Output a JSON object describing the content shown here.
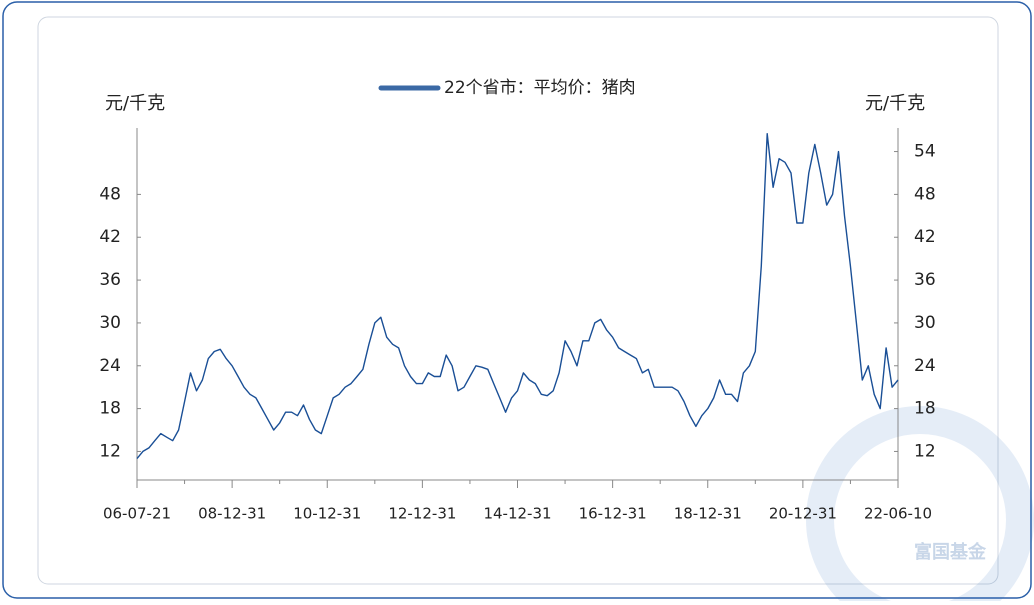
{
  "chart_data": {
    "type": "line",
    "ylabel": "元/千克",
    "y2label": "元/千克",
    "watermark": "富国基金",
    "categories": [
      "06-07-21",
      null,
      null,
      null,
      null,
      null,
      null,
      null,
      null,
      null,
      null,
      null,
      null,
      null,
      null,
      null,
      "08-12-31",
      null,
      null,
      null,
      null,
      null,
      null,
      null,
      null,
      null,
      null,
      null,
      null,
      null,
      null,
      null,
      "10-12-31",
      null,
      null,
      null,
      null,
      null,
      null,
      null,
      null,
      null,
      null,
      null,
      null,
      null,
      null,
      null,
      "12-12-31",
      null,
      null,
      null,
      null,
      null,
      null,
      null,
      null,
      null,
      null,
      null,
      null,
      null,
      null,
      null,
      "14-12-31",
      null,
      null,
      null,
      null,
      null,
      null,
      null,
      null,
      null,
      null,
      null,
      null,
      null,
      null,
      null,
      "16-12-31",
      null,
      null,
      null,
      null,
      null,
      null,
      null,
      null,
      null,
      null,
      null,
      null,
      null,
      null,
      null,
      "18-12-31",
      null,
      null,
      null,
      null,
      null,
      null,
      null,
      null,
      null,
      null,
      null,
      null,
      null,
      null,
      null,
      "20-12-31",
      null,
      null,
      null,
      null,
      null,
      null,
      null,
      null,
      null,
      null,
      null,
      null,
      null,
      null,
      null,
      "22-06-10"
    ],
    "series": [
      {
        "name": "22个省市：平均价：猪肉",
        "color": "#1a4f96",
        "values": [
          11,
          12,
          12.5,
          13.5,
          14.5,
          14,
          13.5,
          15,
          19,
          23,
          20.5,
          22,
          25,
          26,
          26.3,
          25,
          24,
          22.5,
          21,
          20,
          19.5,
          18,
          16.5,
          15,
          16,
          17.5,
          17.5,
          17,
          18.5,
          16.5,
          15,
          14.5,
          17,
          19.5,
          20,
          21,
          21.5,
          22.5,
          23.5,
          27,
          30,
          30.8,
          28,
          27,
          26.5,
          24,
          22.5,
          21.5,
          21.5,
          23,
          22.5,
          22.5,
          25.5,
          24,
          20.5,
          21,
          22.5,
          24,
          23.8,
          23.5,
          21.5,
          19.5,
          17.5,
          19.5,
          20.5,
          23,
          22,
          21.5,
          20,
          19.8,
          20.5,
          23,
          27.5,
          26,
          24,
          27.5,
          27.5,
          30,
          30.5,
          29,
          28,
          26.5,
          26,
          25.5,
          25,
          23,
          23.5,
          21,
          21,
          21,
          21,
          20.5,
          19,
          17,
          15.5,
          17,
          18,
          19.5,
          22,
          20,
          20,
          19,
          23,
          24,
          26,
          38,
          56.5,
          49,
          53,
          52.5,
          51,
          44,
          44,
          51,
          55,
          51,
          46.5,
          48,
          54,
          45,
          38,
          30,
          22,
          24,
          20,
          18,
          26.5,
          21,
          22
        ]
      }
    ],
    "ylim": [
      8,
      58
    ],
    "yticks": [
      12,
      18,
      24,
      30,
      36,
      42,
      48
    ],
    "y2lim": [
      8,
      58
    ],
    "y2ticks": [
      12,
      18,
      24,
      30,
      36,
      42,
      48,
      54
    ]
  }
}
